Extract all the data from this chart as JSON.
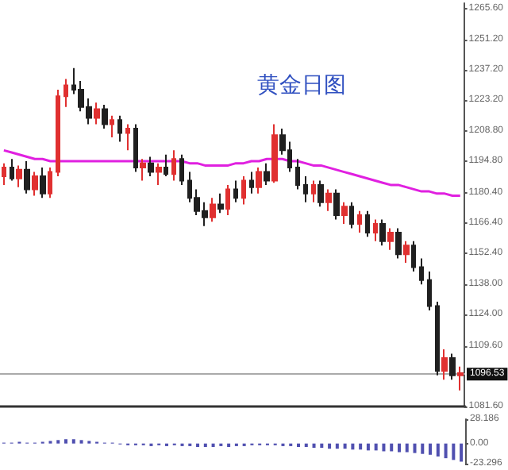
{
  "chart_data": [
    {
      "type": "candlestick",
      "title": "黄金日图",
      "categories": [
        null,
        null,
        null,
        null,
        null,
        null,
        null,
        null,
        null,
        null,
        null,
        null,
        null,
        null,
        null,
        null,
        null,
        null,
        null,
        null,
        null,
        null,
        null,
        null,
        null,
        null,
        null,
        null,
        null,
        null,
        null,
        null,
        null,
        null,
        null,
        null,
        null,
        null,
        null,
        null,
        null,
        null,
        null,
        null,
        null,
        null,
        null,
        null,
        null,
        null,
        null,
        null,
        null,
        null,
        null,
        null,
        null,
        null,
        null,
        null
      ],
      "ohlc": [
        [
          1188,
          1194,
          1184,
          1192
        ],
        [
          1192,
          1196,
          1186,
          1187
        ],
        [
          1187,
          1193,
          1183,
          1191
        ],
        [
          1191,
          1195,
          1180,
          1182
        ],
        [
          1182,
          1190,
          1179,
          1188
        ],
        [
          1188,
          1192,
          1178,
          1180
        ],
        [
          1180,
          1192,
          1178,
          1190
        ],
        [
          1190,
          1228,
          1188,
          1225
        ],
        [
          1225,
          1233,
          1220,
          1230
        ],
        [
          1230,
          1238,
          1226,
          1228
        ],
        [
          1228,
          1232,
          1218,
          1220
        ],
        [
          1220,
          1224,
          1212,
          1215
        ],
        [
          1215,
          1222,
          1212,
          1219
        ],
        [
          1219,
          1221,
          1210,
          1212
        ],
        [
          1212,
          1216,
          1206,
          1214
        ],
        [
          1214,
          1216,
          1204,
          1208
        ],
        [
          1208,
          1212,
          1200,
          1210
        ],
        [
          1210,
          1212,
          1190,
          1192
        ],
        [
          1192,
          1196,
          1186,
          1194
        ],
        [
          1194,
          1197,
          1188,
          1190
        ],
        [
          1190,
          1194,
          1184,
          1192
        ],
        [
          1192,
          1198,
          1188,
          1189
        ],
        [
          1189,
          1200,
          1186,
          1196
        ],
        [
          1196,
          1198,
          1184,
          1186
        ],
        [
          1186,
          1190,
          1176,
          1178
        ],
        [
          1178,
          1182,
          1170,
          1172
        ],
        [
          1172,
          1176,
          1165,
          1169
        ],
        [
          1169,
          1178,
          1167,
          1175
        ],
        [
          1175,
          1180,
          1171,
          1173
        ],
        [
          1173,
          1184,
          1170,
          1182
        ],
        [
          1182,
          1186,
          1176,
          1178
        ],
        [
          1178,
          1188,
          1175,
          1186
        ],
        [
          1186,
          1190,
          1180,
          1183
        ],
        [
          1183,
          1192,
          1180,
          1190
        ],
        [
          1190,
          1194,
          1184,
          1186
        ],
        [
          1186,
          1212,
          1185,
          1207
        ],
        [
          1207,
          1210,
          1198,
          1200
        ],
        [
          1200,
          1204,
          1190,
          1192
        ],
        [
          1192,
          1196,
          1182,
          1184
        ],
        [
          1184,
          1188,
          1176,
          1180
        ],
        [
          1180,
          1186,
          1176,
          1184
        ],
        [
          1184,
          1186,
          1174,
          1176
        ],
        [
          1176,
          1182,
          1172,
          1180
        ],
        [
          1180,
          1182,
          1168,
          1170
        ],
        [
          1170,
          1176,
          1166,
          1174
        ],
        [
          1174,
          1176,
          1164,
          1166
        ],
        [
          1166,
          1172,
          1162,
          1170
        ],
        [
          1170,
          1172,
          1160,
          1162
        ],
        [
          1162,
          1168,
          1158,
          1166
        ],
        [
          1166,
          1168,
          1156,
          1158
        ],
        [
          1158,
          1164,
          1154,
          1162
        ],
        [
          1162,
          1164,
          1150,
          1152
        ],
        [
          1152,
          1158,
          1148,
          1156
        ],
        [
          1156,
          1158,
          1144,
          1146
        ],
        [
          1146,
          1150,
          1138,
          1140
        ],
        [
          1140,
          1144,
          1126,
          1128
        ],
        [
          1128,
          1130,
          1096,
          1098
        ],
        [
          1098,
          1108,
          1094,
          1104
        ],
        [
          1104,
          1106,
          1094,
          1096
        ],
        [
          1096,
          1100,
          1089,
          1097
        ]
      ],
      "colors": [
        "#e03030",
        "#202020",
        "#e03030",
        "#202020",
        "#e03030",
        "#202020",
        "#e03030",
        "#e03030",
        "#e03030",
        "#202020",
        "#202020",
        "#202020",
        "#e03030",
        "#202020",
        "#e03030",
        "#202020",
        "#e03030",
        "#202020",
        "#e03030",
        "#202020",
        "#e03030",
        "#202020",
        "#e03030",
        "#202020",
        "#202020",
        "#202020",
        "#202020",
        "#e03030",
        "#202020",
        "#e03030",
        "#202020",
        "#e03030",
        "#202020",
        "#e03030",
        "#202020",
        "#e03030",
        "#202020",
        "#202020",
        "#202020",
        "#202020",
        "#e03030",
        "#202020",
        "#e03030",
        "#202020",
        "#e03030",
        "#202020",
        "#e03030",
        "#202020",
        "#e03030",
        "#202020",
        "#e03030",
        "#202020",
        "#e03030",
        "#202020",
        "#202020",
        "#202020",
        "#202020",
        "#e03030",
        "#202020",
        "#e03030"
      ],
      "series": [
        {
          "type": "line",
          "color": "#e020e0",
          "values": [
            1200,
            1199,
            1198,
            1197,
            1196,
            1196,
            1195,
            1195,
            1195,
            1195,
            1195,
            1195,
            1195,
            1195,
            1195,
            1195,
            1195,
            1195,
            1195,
            1195,
            1195,
            1195,
            1195,
            1195,
            1194,
            1194,
            1193,
            1193,
            1193,
            1193,
            1194,
            1194,
            1195,
            1195,
            1196,
            1196,
            1196,
            1195,
            1195,
            1194,
            1193,
            1193,
            1192,
            1191,
            1190,
            1189,
            1188,
            1187,
            1186,
            1185,
            1184,
            1184,
            1183,
            1182,
            1181,
            1181,
            1180,
            1180,
            1179,
            1179
          ]
        }
      ],
      "ylim": [
        1081.6,
        1268
      ],
      "yticks": [
        {
          "value": 1265.6,
          "label": "1265.60"
        },
        {
          "value": 1251.2,
          "label": "1251.20"
        },
        {
          "value": 1237.2,
          "label": "1237.20"
        },
        {
          "value": 1223.2,
          "label": "1223.20"
        },
        {
          "value": 1208.8,
          "label": "1208.80"
        },
        {
          "value": 1194.8,
          "label": "1194.80"
        },
        {
          "value": 1180.4,
          "label": "1180.40"
        },
        {
          "value": 1166.4,
          "label": "1166.40"
        },
        {
          "value": 1152.4,
          "label": "1152.40"
        },
        {
          "value": 1138,
          "label": "1138.00"
        },
        {
          "value": 1124,
          "label": "1124.00"
        },
        {
          "value": 1109.6,
          "label": "1109.60"
        },
        {
          "value": 1081.6,
          "label": "1081.60"
        }
      ],
      "ref_lines": [
        {
          "axis": "y",
          "value": 1096.53,
          "label": "1096.53",
          "color": "#aaaaaa"
        }
      ],
      "tick_labels": "y"
    },
    {
      "type": "bar",
      "categories": [
        null,
        null,
        null,
        null,
        null,
        null,
        null,
        null,
        null,
        null,
        null,
        null,
        null,
        null,
        null,
        null,
        null,
        null,
        null,
        null,
        null,
        null,
        null,
        null,
        null,
        null,
        null,
        null,
        null,
        null,
        null,
        null,
        null,
        null,
        null,
        null,
        null,
        null,
        null,
        null,
        null,
        null,
        null,
        null,
        null,
        null,
        null,
        null,
        null,
        null,
        null,
        null,
        null,
        null,
        null,
        null,
        null,
        null,
        null,
        null
      ],
      "values": [
        1,
        1,
        2,
        1,
        1,
        2,
        3,
        4,
        5,
        5,
        4,
        3,
        2,
        1,
        1,
        -1,
        -2,
        -2,
        -2,
        -3,
        -2,
        -3,
        -2,
        -3,
        -3,
        -4,
        -4,
        -4,
        -3,
        -4,
        -3,
        -3,
        -2,
        -2,
        -2,
        -2,
        -3,
        -3,
        -4,
        -4,
        -5,
        -5,
        -6,
        -6,
        -6,
        -7,
        -7,
        -8,
        -8,
        -9,
        -9,
        -10,
        -10,
        -11,
        -12,
        -13,
        -15,
        -17,
        -19,
        -21
      ],
      "color": "#5050b0",
      "ylim": [
        -23.296,
        28.186
      ],
      "yticks": [
        {
          "value": 28.186,
          "label": "28.186"
        },
        {
          "value": 0,
          "label": "0.00"
        },
        {
          "value": -23.296,
          "label": "-23.296"
        }
      ],
      "tick_labels": "y"
    }
  ]
}
